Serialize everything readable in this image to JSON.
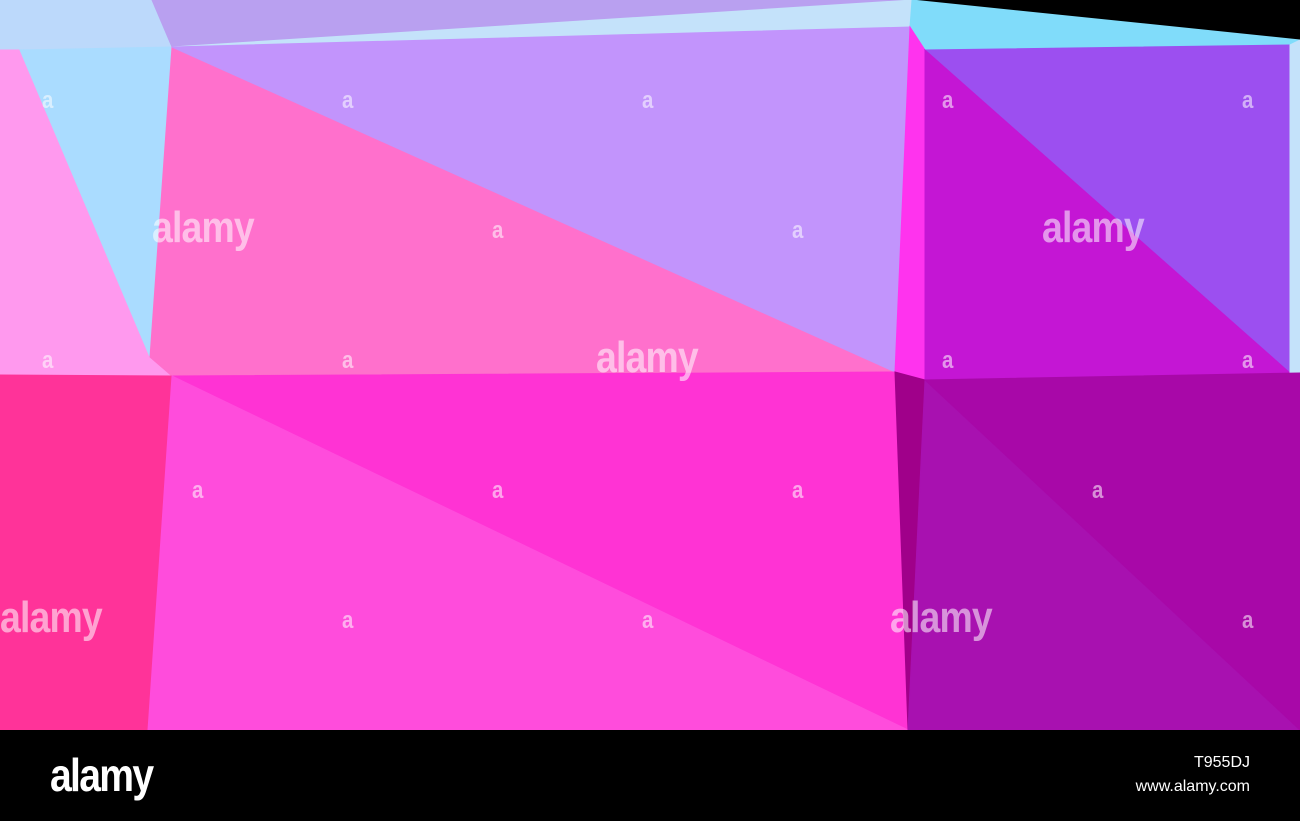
{
  "colors": {
    "light_blue": "#bcd9fb",
    "sky_blue": "#aadcff",
    "lavender_top": "#b9a0f0",
    "pale_strip": "#c4e2fa",
    "cyan": "#80dcfa",
    "pink_light": "#ff99ee",
    "pink": "#ff70cc",
    "lavender": "#c294fc",
    "magenta_strip": "#ff33ee",
    "purple": "#9c4ff0",
    "violet": "#c416d4",
    "hot_pink": "#ff3399",
    "magenta": "#ff33d4",
    "magenta_light": "#ff4cdc",
    "dark_magenta": "#a0008a",
    "plum": "#a808a8",
    "plum2": "#a811b0"
  },
  "watermark": {
    "big": "alamy",
    "small": "a"
  },
  "footer": {
    "logo": "alamy",
    "image_id": "T955DJ",
    "site": "www.alamy.com"
  }
}
